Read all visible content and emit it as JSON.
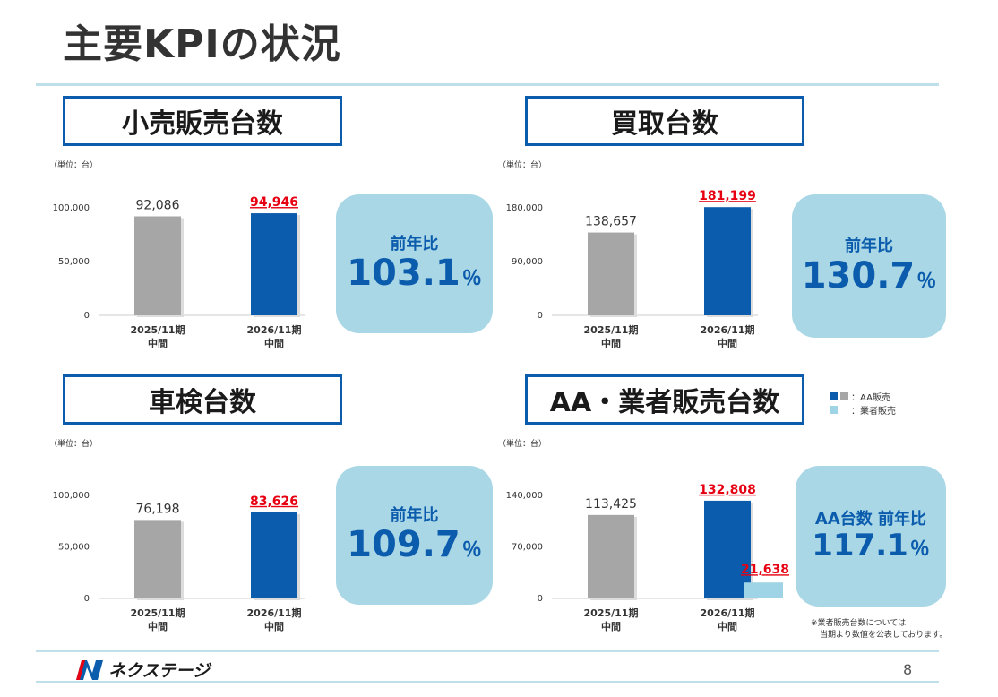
{
  "page": {
    "title": "主要KPIの状況",
    "page_number": "8",
    "logo_text": "ネクステージ",
    "note_line1": "※業者販売台数については",
    "note_line2": "当期より数値を公表しております。"
  },
  "colors": {
    "prev": "#a6a6a6",
    "curr": "#0b5cad",
    "dealer": "#9fd3e6",
    "accent_red": "#e60012",
    "box_bg": "#a9d7e6"
  },
  "legend": {
    "items": [
      {
        "label": "：AA販売"
      },
      {
        "label": "：業者販売"
      }
    ]
  },
  "chart_data": [
    {
      "id": "retail",
      "type": "bar",
      "title": "小売販売台数",
      "unit": "（単位：台）",
      "categories": [
        "2025/11期\n中間",
        "2026/11期\n中間"
      ],
      "values": [
        92086,
        94946
      ],
      "value_labels": [
        "92,086",
        "94,946"
      ],
      "ylim": [
        0,
        100000
      ],
      "yticks": [
        0,
        50000,
        100000
      ],
      "ytick_labels": [
        "0",
        "50,000",
        "100,000"
      ],
      "yoy_label": "前年比",
      "yoy_value": "103.1",
      "yoy_unit": "％"
    },
    {
      "id": "purchase",
      "type": "bar",
      "title": "買取台数",
      "unit": "（単位：台）",
      "categories": [
        "2025/11期\n中間",
        "2026/11期\n中間"
      ],
      "values": [
        138657,
        181199
      ],
      "value_labels": [
        "138,657",
        "181,199"
      ],
      "ylim": [
        0,
        180000
      ],
      "yticks": [
        0,
        90000,
        180000
      ],
      "ytick_labels": [
        "0",
        "90,000",
        "180,000"
      ],
      "yoy_label": "前年比",
      "yoy_value": "130.7",
      "yoy_unit": "％"
    },
    {
      "id": "inspection",
      "type": "bar",
      "title": "車検台数",
      "unit": "（単位：台）",
      "categories": [
        "2025/11期\n中間",
        "2026/11期\n中間"
      ],
      "values": [
        76198,
        83626
      ],
      "value_labels": [
        "76,198",
        "83,626"
      ],
      "ylim": [
        0,
        100000
      ],
      "yticks": [
        0,
        50000,
        100000
      ],
      "ytick_labels": [
        "0",
        "50,000",
        "100,000"
      ],
      "yoy_label": "前年比",
      "yoy_value": "109.7",
      "yoy_unit": "％"
    },
    {
      "id": "aa",
      "type": "bar",
      "title": "AA・業者販売台数",
      "unit": "（単位：台）",
      "categories": [
        "2025/11期\n中間",
        "2026/11期\n中間"
      ],
      "values": [
        113425,
        132808
      ],
      "value_labels": [
        "113,425",
        "132,808"
      ],
      "extra": {
        "value": 21638,
        "label": "21,638"
      },
      "ylim": [
        0,
        140000
      ],
      "yticks": [
        0,
        70000,
        140000
      ],
      "ytick_labels": [
        "0",
        "70,000",
        "140,000"
      ],
      "yoy_label": "AA台数 前年比",
      "yoy_value": "117.1",
      "yoy_unit": "％"
    }
  ]
}
